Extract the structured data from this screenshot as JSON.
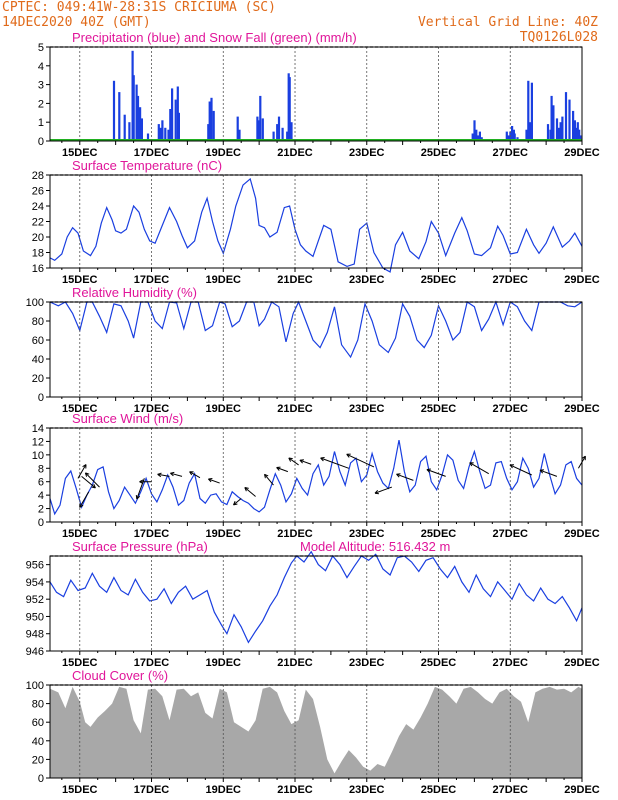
{
  "header": {
    "line1": "CPTEC:  049:41W-28:31S  CRICIUMA (SC)",
    "line2": "14DEC2020 40Z (GMT)",
    "grid_note": "Vertical Grid Line: 40Z",
    "code": "TQ0126L028"
  },
  "colors": {
    "header_text": "#e06a1a",
    "panel_title": "#e0169a",
    "series_blue": "#1a3fe0",
    "snow_green": "#20b020",
    "cloud_gray": "#a8a8a8",
    "frame": "#000000"
  },
  "x_axis": {
    "tick_labels": [
      "15DEC",
      "17DEC",
      "19DEC",
      "21DEC",
      "23DEC",
      "25DEC",
      "27DEC",
      "29DEC"
    ],
    "tick_days": [
      15,
      17,
      19,
      21,
      23,
      25,
      27,
      29
    ],
    "xlim": [
      14.17,
      29.0
    ]
  },
  "panels": {
    "precip": {
      "title": "Precipitation (blue) and Snow Fall (green) (mm/h)"
    },
    "temp": {
      "title": "Surface Temperature (nC)"
    },
    "humidity": {
      "title": "Relative Humidity (%)"
    },
    "wind": {
      "title": "Surface Wind (m/s)"
    },
    "pressure": {
      "title": "Surface Pressure (hPa)",
      "extra": "Model Altitude: 516.432 m"
    },
    "cloud": {
      "title": "Cloud Cover (%)"
    }
  },
  "chart_data": [
    {
      "type": "bar",
      "title": "Precipitation (blue) and Snow Fall (green) (mm/h)",
      "yticks": [
        0,
        1,
        2,
        3,
        4,
        5
      ],
      "ylim": [
        0,
        5
      ],
      "series": [
        {
          "name": "Precipitation (blue)",
          "x": [
            14.95,
            15.95,
            16.1,
            16.25,
            16.38,
            16.47,
            16.5,
            16.58,
            16.62,
            16.68,
            16.73,
            16.9,
            17.2,
            17.25,
            17.3,
            17.38,
            17.47,
            17.52,
            17.57,
            17.67,
            17.73,
            17.76,
            18.58,
            18.62,
            18.67,
            18.73,
            19.4,
            19.45,
            19.95,
            20.0,
            20.03,
            20.1,
            20.4,
            20.5,
            20.55,
            20.65,
            20.78,
            20.82,
            20.85,
            20.9,
            25.95,
            26.0,
            26.05,
            26.1,
            26.15,
            26.2,
            26.9,
            26.95,
            27.0,
            27.05,
            27.1,
            27.12,
            27.2,
            27.45,
            27.5,
            27.55,
            27.6,
            28.05,
            28.12,
            28.15,
            28.2,
            28.3,
            28.35,
            28.4,
            28.45,
            28.55,
            28.65,
            28.75,
            28.8,
            28.85,
            28.88,
            28.92,
            28.95
          ],
          "values": [
            0.1,
            3.2,
            2.6,
            1.4,
            1.0,
            4.8,
            3.5,
            3.0,
            2.4,
            1.8,
            1.2,
            0.4,
            0.9,
            0.7,
            1.1,
            0.7,
            0.6,
            1.7,
            2.8,
            2.2,
            2.9,
            1.5,
            0.9,
            2.1,
            2.3,
            1.6,
            1.3,
            0.6,
            1.3,
            1.1,
            2.4,
            1.2,
            0.5,
            0.9,
            1.3,
            0.7,
            0.5,
            3.6,
            3.4,
            1.0,
            0.4,
            1.1,
            0.6,
            0.3,
            0.5,
            0.2,
            0.5,
            0.3,
            0.5,
            0.8,
            0.6,
            0.4,
            0.2,
            0.6,
            3.2,
            1.0,
            3.1,
            0.9,
            0.6,
            2.4,
            1.9,
            1.2,
            0.7,
            1.0,
            1.3,
            2.6,
            2.2,
            1.6,
            1.1,
            0.7,
            1.0,
            0.6,
            0.3
          ]
        },
        {
          "name": "Snow Fall (green)",
          "x": [
            14.17,
            29.0
          ],
          "values": [
            0,
            0
          ]
        }
      ]
    },
    {
      "type": "line",
      "title": "Surface Temperature (nC)",
      "yticks": [
        16,
        18,
        20,
        22,
        24,
        26,
        28
      ],
      "ylim": [
        16,
        28
      ],
      "x": [
        14.17,
        14.3,
        14.5,
        14.65,
        14.8,
        14.95,
        15.1,
        15.3,
        15.45,
        15.6,
        15.75,
        15.9,
        16.0,
        16.15,
        16.3,
        16.5,
        16.65,
        16.8,
        16.95,
        17.1,
        17.3,
        17.5,
        17.7,
        17.85,
        18.0,
        18.2,
        18.4,
        18.55,
        18.7,
        18.85,
        19.0,
        19.2,
        19.35,
        19.55,
        19.75,
        19.9,
        20.0,
        20.15,
        20.3,
        20.5,
        20.7,
        20.85,
        21.0,
        21.15,
        21.3,
        21.5,
        21.65,
        21.8,
        22.0,
        22.2,
        22.45,
        22.65,
        22.8,
        23.0,
        23.2,
        23.45,
        23.65,
        23.8,
        24.0,
        24.2,
        24.45,
        24.65,
        24.8,
        25.0,
        25.2,
        25.45,
        25.65,
        25.8,
        26.0,
        26.2,
        26.45,
        26.65,
        26.8,
        27.0,
        27.2,
        27.45,
        27.65,
        27.8,
        28.0,
        28.2,
        28.45,
        28.65,
        28.8,
        29.0
      ],
      "y": [
        17.3,
        17.0,
        17.8,
        20.0,
        21.2,
        20.5,
        18.2,
        17.6,
        18.8,
        21.8,
        23.8,
        22.2,
        20.8,
        20.5,
        21.0,
        24.0,
        23.2,
        21.0,
        19.5,
        19.2,
        21.5,
        23.8,
        22.0,
        20.2,
        18.6,
        19.5,
        23.2,
        25.0,
        22.0,
        19.5,
        17.9,
        21.0,
        24.0,
        26.7,
        27.5,
        25.0,
        21.5,
        21.2,
        20.0,
        20.6,
        23.8,
        24.0,
        21.0,
        19.0,
        18.2,
        17.5,
        19.5,
        21.5,
        21.0,
        16.8,
        16.2,
        16.5,
        21.0,
        21.8,
        18.0,
        16.0,
        15.5,
        19.0,
        20.6,
        18.2,
        17.2,
        19.4,
        22.0,
        20.5,
        17.6,
        20.5,
        22.5,
        20.8,
        17.8,
        17.6,
        18.6,
        21.4,
        20.2,
        17.8,
        18.0,
        21.0,
        19.0,
        17.9,
        19.2,
        21.3,
        18.7,
        19.5,
        20.5,
        18.8
      ]
    },
    {
      "type": "line",
      "title": "Relative Humidity (%)",
      "yticks": [
        0,
        20,
        40,
        60,
        80,
        100
      ],
      "ylim": [
        0,
        100
      ],
      "x": [
        14.17,
        14.4,
        14.6,
        14.8,
        15.0,
        15.2,
        15.35,
        15.55,
        15.75,
        15.95,
        16.15,
        16.35,
        16.5,
        16.7,
        16.9,
        17.1,
        17.3,
        17.5,
        17.7,
        17.9,
        18.1,
        18.3,
        18.5,
        18.7,
        18.9,
        19.05,
        19.25,
        19.45,
        19.65,
        19.85,
        20.0,
        20.15,
        20.35,
        20.55,
        20.75,
        20.95,
        21.1,
        21.3,
        21.5,
        21.7,
        21.9,
        22.1,
        22.3,
        22.55,
        22.75,
        22.95,
        23.15,
        23.35,
        23.6,
        23.8,
        24.0,
        24.2,
        24.4,
        24.6,
        24.8,
        25.0,
        25.2,
        25.4,
        25.6,
        25.8,
        26.0,
        26.2,
        26.4,
        26.6,
        26.8,
        27.0,
        27.2,
        27.4,
        27.6,
        27.8,
        28.0,
        28.2,
        28.4,
        28.6,
        28.8,
        29.0
      ],
      "y": [
        100,
        96,
        100,
        88,
        70,
        100,
        100,
        85,
        68,
        98,
        96,
        80,
        62,
        100,
        100,
        80,
        72,
        100,
        99,
        72,
        100,
        100,
        70,
        75,
        100,
        98,
        74,
        80,
        100,
        100,
        75,
        82,
        100,
        95,
        58,
        88,
        100,
        80,
        60,
        52,
        68,
        95,
        55,
        42,
        60,
        98,
        80,
        55,
        47,
        62,
        98,
        85,
        60,
        52,
        65,
        96,
        80,
        60,
        68,
        100,
        95,
        70,
        82,
        100,
        76,
        100,
        95,
        80,
        70,
        100,
        100,
        100,
        100,
        96,
        95,
        100
      ]
    },
    {
      "type": "line",
      "title": "Surface Wind (m/s)",
      "yticks": [
        0,
        2,
        4,
        6,
        8,
        10,
        12,
        14
      ],
      "ylim": [
        0,
        14
      ],
      "x": [
        14.17,
        14.3,
        14.45,
        14.6,
        14.75,
        14.9,
        15.05,
        15.2,
        15.35,
        15.5,
        15.65,
        15.8,
        15.95,
        16.1,
        16.25,
        16.4,
        16.55,
        16.7,
        16.85,
        17.0,
        17.15,
        17.3,
        17.45,
        17.6,
        17.75,
        17.9,
        18.05,
        18.2,
        18.35,
        18.5,
        18.65,
        18.8,
        18.95,
        19.1,
        19.25,
        19.4,
        19.55,
        19.7,
        19.85,
        20.0,
        20.15,
        20.3,
        20.45,
        20.6,
        20.75,
        20.9,
        21.05,
        21.2,
        21.35,
        21.5,
        21.65,
        21.8,
        21.95,
        22.1,
        22.25,
        22.4,
        22.55,
        22.7,
        22.85,
        23.0,
        23.15,
        23.3,
        23.45,
        23.6,
        23.75,
        23.9,
        24.05,
        24.2,
        24.35,
        24.5,
        24.65,
        24.8,
        24.95,
        25.1,
        25.25,
        25.4,
        25.55,
        25.7,
        25.85,
        26.0,
        26.15,
        26.3,
        26.45,
        26.6,
        26.75,
        26.9,
        27.05,
        27.2,
        27.35,
        27.5,
        27.65,
        27.8,
        27.95,
        28.1,
        28.25,
        28.4,
        28.55,
        28.7,
        28.85,
        29.0
      ],
      "y": [
        3.5,
        1.2,
        2.5,
        6.5,
        7.6,
        5.0,
        2.2,
        4.0,
        5.5,
        7.8,
        8.2,
        4.5,
        2.0,
        3.2,
        5.2,
        4.0,
        2.8,
        4.5,
        6.5,
        4.2,
        3.0,
        4.8,
        7.0,
        5.2,
        2.5,
        3.2,
        5.8,
        7.2,
        3.5,
        2.8,
        4.0,
        4.2,
        3.0,
        2.6,
        4.5,
        3.8,
        3.2,
        2.8,
        2.0,
        1.5,
        2.2,
        4.8,
        7.2,
        5.5,
        3.0,
        4.2,
        6.5,
        5.0,
        4.0,
        7.2,
        8.5,
        5.5,
        6.8,
        10.5,
        7.5,
        5.5,
        8.8,
        9.5,
        6.0,
        7.0,
        10.2,
        7.5,
        5.8,
        5.0,
        8.0,
        12.2,
        7.5,
        4.5,
        5.5,
        9.0,
        9.8,
        6.0,
        4.8,
        7.0,
        10.0,
        9.2,
        6.2,
        5.0,
        8.2,
        10.5,
        7.5,
        5.0,
        5.5,
        8.8,
        9.0,
        6.5,
        4.8,
        6.0,
        9.5,
        8.0,
        5.2,
        6.5,
        10.2,
        7.0,
        4.2,
        5.5,
        8.5,
        9.0,
        6.5,
        5.5
      ]
    },
    {
      "type": "line",
      "title": "Surface Pressure (hPa)",
      "yticks": [
        946,
        948,
        950,
        952,
        954,
        956
      ],
      "ylim": [
        946,
        957
      ],
      "x": [
        14.17,
        14.35,
        14.55,
        14.75,
        14.95,
        15.15,
        15.35,
        15.55,
        15.75,
        15.95,
        16.15,
        16.35,
        16.55,
        16.75,
        16.95,
        17.15,
        17.35,
        17.55,
        17.75,
        17.95,
        18.15,
        18.35,
        18.55,
        18.75,
        18.95,
        19.1,
        19.3,
        19.5,
        19.7,
        19.9,
        20.1,
        20.3,
        20.5,
        20.7,
        20.9,
        21.05,
        21.25,
        21.45,
        21.65,
        21.85,
        22.05,
        22.25,
        22.45,
        22.65,
        22.85,
        23.05,
        23.25,
        23.45,
        23.65,
        23.85,
        24.05,
        24.25,
        24.45,
        24.65,
        24.85,
        25.05,
        25.25,
        25.45,
        25.65,
        25.85,
        26.05,
        26.25,
        26.45,
        26.65,
        26.85,
        27.05,
        27.25,
        27.45,
        27.65,
        27.85,
        28.05,
        28.25,
        28.45,
        28.65,
        28.85,
        29.0
      ],
      "y": [
        954.0,
        952.8,
        952.3,
        954.2,
        953.0,
        953.3,
        955.0,
        953.5,
        952.8,
        954.5,
        953.0,
        952.5,
        954.3,
        952.8,
        951.8,
        952.0,
        953.2,
        951.5,
        952.8,
        953.5,
        952.0,
        952.5,
        953.0,
        950.5,
        949.0,
        948.0,
        950.2,
        948.8,
        947.0,
        948.3,
        949.5,
        951.2,
        952.5,
        954.5,
        956.2,
        957.0,
        956.3,
        957.5,
        956.0,
        955.3,
        957.0,
        956.0,
        954.5,
        955.8,
        957.0,
        956.5,
        957.2,
        955.5,
        954.8,
        956.8,
        957.0,
        956.3,
        955.2,
        956.5,
        956.8,
        955.5,
        954.5,
        955.8,
        954.0,
        952.8,
        954.8,
        953.2,
        952.3,
        954.0,
        953.0,
        952.0,
        953.8,
        952.5,
        951.8,
        953.3,
        952.0,
        951.5,
        952.3,
        951.0,
        949.5,
        951.0
      ]
    },
    {
      "type": "area",
      "title": "Cloud Cover (%)",
      "yticks": [
        0,
        20,
        40,
        60,
        80,
        100
      ],
      "ylim": [
        0,
        100
      ],
      "x": [
        14.17,
        14.4,
        14.6,
        14.8,
        15.0,
        15.15,
        15.3,
        15.5,
        15.7,
        15.9,
        16.1,
        16.3,
        16.5,
        16.7,
        16.9,
        17.1,
        17.3,
        17.5,
        17.7,
        17.9,
        18.1,
        18.3,
        18.5,
        18.7,
        18.9,
        19.1,
        19.3,
        19.5,
        19.7,
        19.9,
        20.1,
        20.3,
        20.5,
        20.7,
        20.9,
        21.1,
        21.3,
        21.5,
        21.7,
        21.9,
        22.1,
        22.3,
        22.5,
        22.7,
        22.9,
        23.1,
        23.3,
        23.5,
        23.7,
        23.9,
        24.1,
        24.3,
        24.5,
        24.7,
        24.9,
        25.1,
        25.3,
        25.5,
        25.7,
        25.9,
        26.1,
        26.3,
        26.5,
        26.7,
        26.9,
        27.1,
        27.3,
        27.5,
        27.7,
        27.9,
        28.1,
        28.3,
        28.5,
        28.7,
        28.9,
        29.0
      ],
      "y": [
        96,
        92,
        75,
        98,
        82,
        60,
        55,
        65,
        72,
        80,
        98,
        96,
        62,
        48,
        95,
        96,
        88,
        62,
        95,
        96,
        88,
        92,
        70,
        64,
        96,
        92,
        60,
        55,
        50,
        62,
        96,
        98,
        92,
        72,
        58,
        62,
        95,
        85,
        55,
        20,
        5,
        18,
        30,
        22,
        12,
        8,
        15,
        12,
        28,
        45,
        58,
        52,
        65,
        80,
        98,
        95,
        88,
        80,
        96,
        98,
        92,
        85,
        80,
        92,
        96,
        88,
        82,
        60,
        92,
        96,
        98,
        95,
        96,
        92,
        98,
        96
      ]
    }
  ]
}
